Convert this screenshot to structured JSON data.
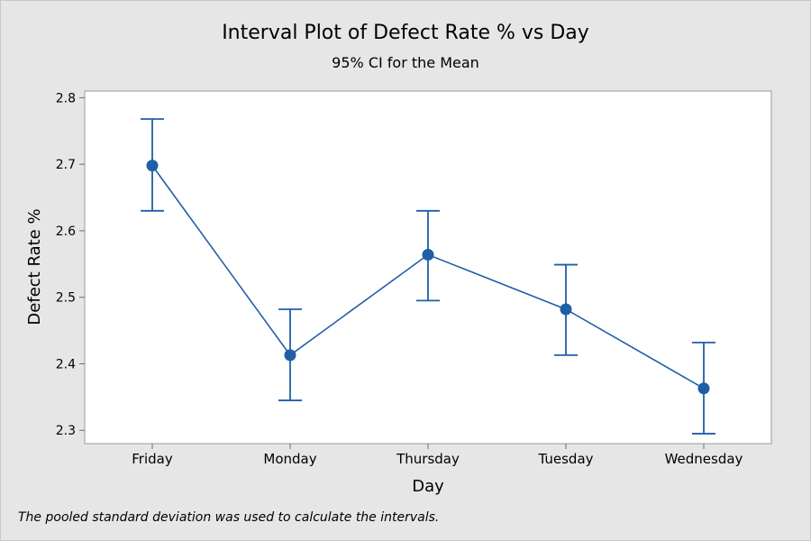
{
  "chart_data": {
    "type": "interval",
    "title": "Interval Plot of Defect Rate % vs Day",
    "subtitle": "95% CI for the Mean",
    "xlabel": "Day",
    "ylabel": "Defect Rate %",
    "categories": [
      "Friday",
      "Monday",
      "Thursday",
      "Tuesday",
      "Wednesday"
    ],
    "means": [
      2.698,
      2.413,
      2.564,
      2.482,
      2.363
    ],
    "ci_lower": [
      2.63,
      2.345,
      2.495,
      2.413,
      2.295
    ],
    "ci_upper": [
      2.768,
      2.482,
      2.63,
      2.549,
      2.432
    ],
    "ylim": [
      2.28,
      2.81
    ],
    "yticks": [
      "2.3",
      "2.4",
      "2.5",
      "2.6",
      "2.7",
      "2.8"
    ],
    "line_color": "#1f5fa6",
    "marker_color": "#1f5fa6",
    "grid": false,
    "legend": "none"
  },
  "footnote": "The pooled standard deviation was used to calculate the intervals."
}
